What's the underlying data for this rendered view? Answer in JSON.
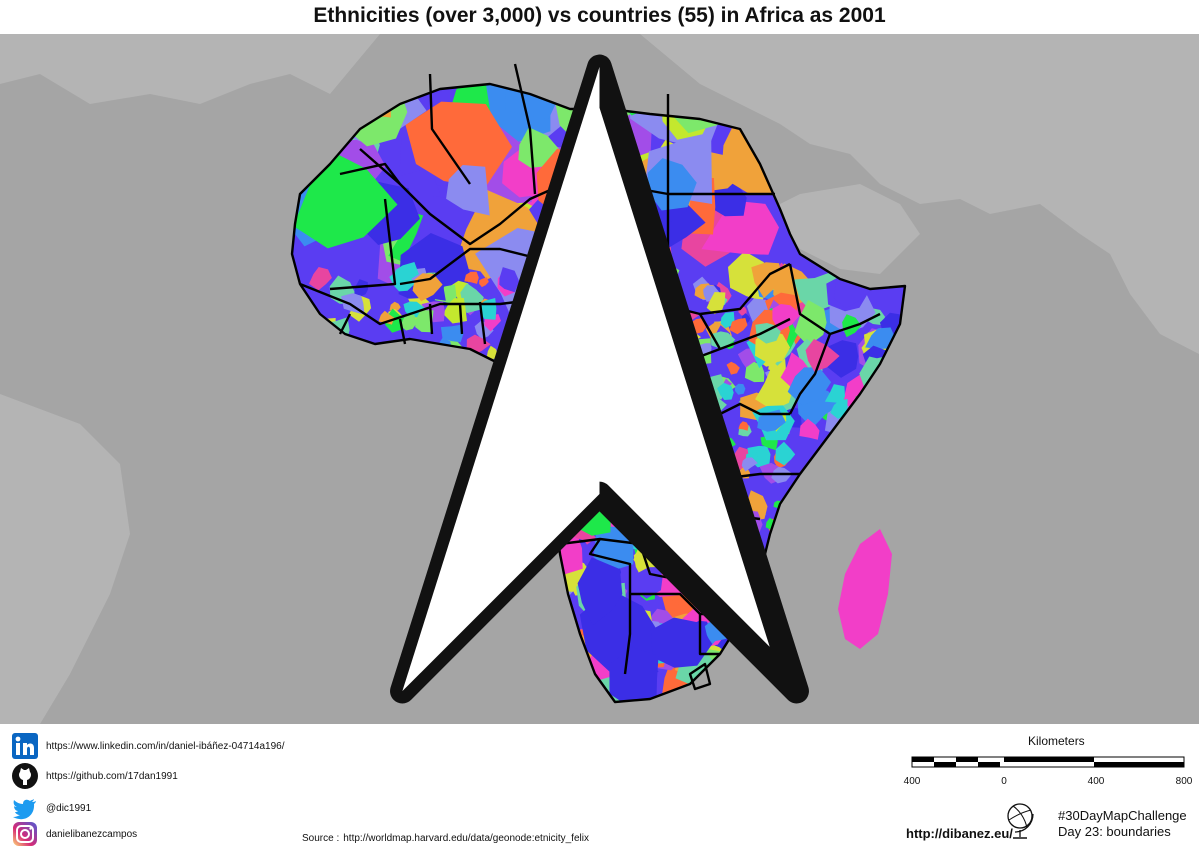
{
  "title": "Ethnicities (over 3,000) vs countries (55) in Africa as 2001",
  "map": {
    "background_color": "#a5a5a5",
    "land_other_color": "#b4b4b4",
    "border_color": "#000000",
    "ethnic_palette": [
      "#3b2ee6",
      "#5a3df2",
      "#d6e13a",
      "#1ee84a",
      "#f23ec8",
      "#2ad3d3",
      "#a24de8",
      "#7de86b",
      "#ff6a3a",
      "#3b8cf0",
      "#c3e82e",
      "#e845a0",
      "#6ad6a8",
      "#8b8bf0",
      "#f0a23a"
    ]
  },
  "links": {
    "linkedin": "https://www.linkedin.com/in/daniel-ibáñez-04714a196/",
    "github": "https://github.com/17dan1991",
    "twitter": "@dic1991",
    "instagram": "danielibanezcampos"
  },
  "source": {
    "label": "Source :",
    "url": "http://worldmap.harvard.edu/data/geonode:etnicity_felix"
  },
  "scale": {
    "title": "Kilometers",
    "labels": [
      "400",
      "0",
      "400",
      "800"
    ]
  },
  "site": "http://dibanez.eu/",
  "challenge": {
    "hashtag": "#30DayMapChallenge",
    "day": "Day 23: boundaries"
  }
}
